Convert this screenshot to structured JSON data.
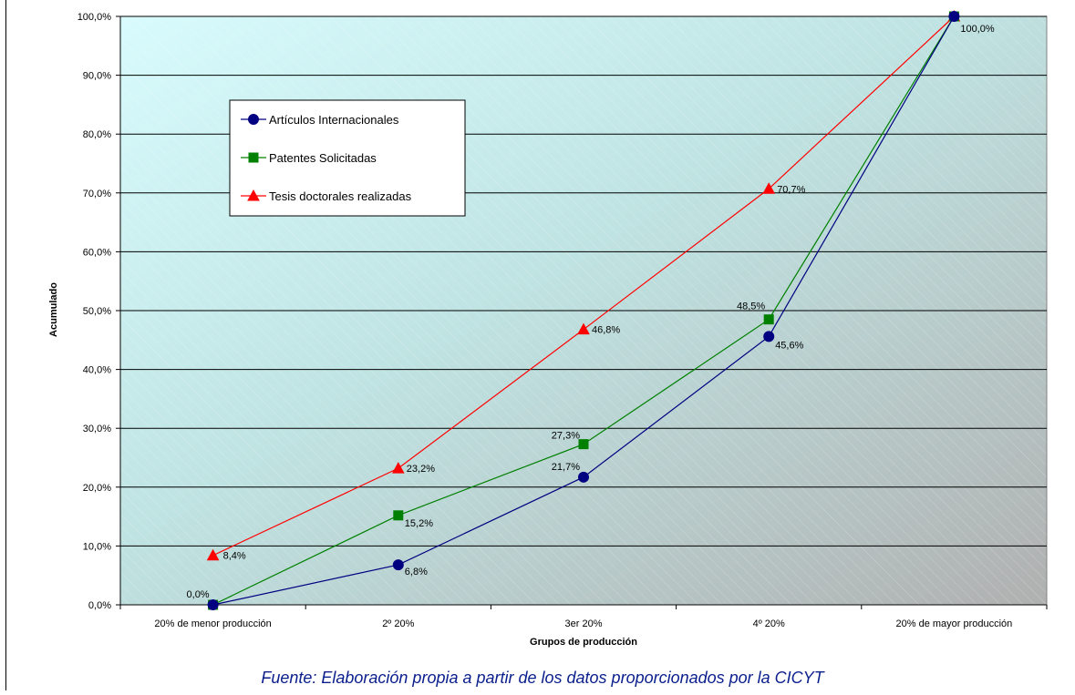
{
  "chart_data": {
    "type": "line",
    "categories": [
      "20% de menor producción",
      "2º 20%",
      "3er 20%",
      "4º 20%",
      "20% de mayor producción"
    ],
    "xlabel": "Grupos de producción",
    "ylabel": "Acumulado",
    "ylim": [
      0,
      100
    ],
    "yticks": [
      "0,0%",
      "10,0%",
      "20,0%",
      "30,0%",
      "40,0%",
      "50,0%",
      "60,0%",
      "70,0%",
      "80,0%",
      "90,0%",
      "100,0%"
    ],
    "grid": true,
    "legend_position": "upper-left inside plot",
    "series": [
      {
        "name": "Artículos Internacionales",
        "color": "#000080",
        "marker": "circle",
        "values": [
          0.0,
          6.8,
          21.7,
          45.6,
          100.0
        ],
        "labels": [
          "0,0%",
          "6,8%",
          "21,7%",
          "45,6%",
          "100,0%"
        ]
      },
      {
        "name": "Patentes Solicitadas",
        "color": "#008000",
        "marker": "square",
        "values": [
          0.0,
          15.2,
          27.3,
          48.5,
          100.0
        ],
        "labels": [
          "",
          "15,2%",
          "27,3%",
          "48,5%",
          ""
        ]
      },
      {
        "name": "Tesis doctorales realizadas",
        "color": "#ff0000",
        "marker": "triangle",
        "values": [
          8.4,
          23.2,
          46.8,
          70.7,
          100.0
        ],
        "labels": [
          "8,4%",
          "23,2%",
          "46,8%",
          "70,7%",
          ""
        ]
      }
    ]
  },
  "source": "Fuente: Elaboración propia a partir de los datos proporcionados por la CICYT"
}
